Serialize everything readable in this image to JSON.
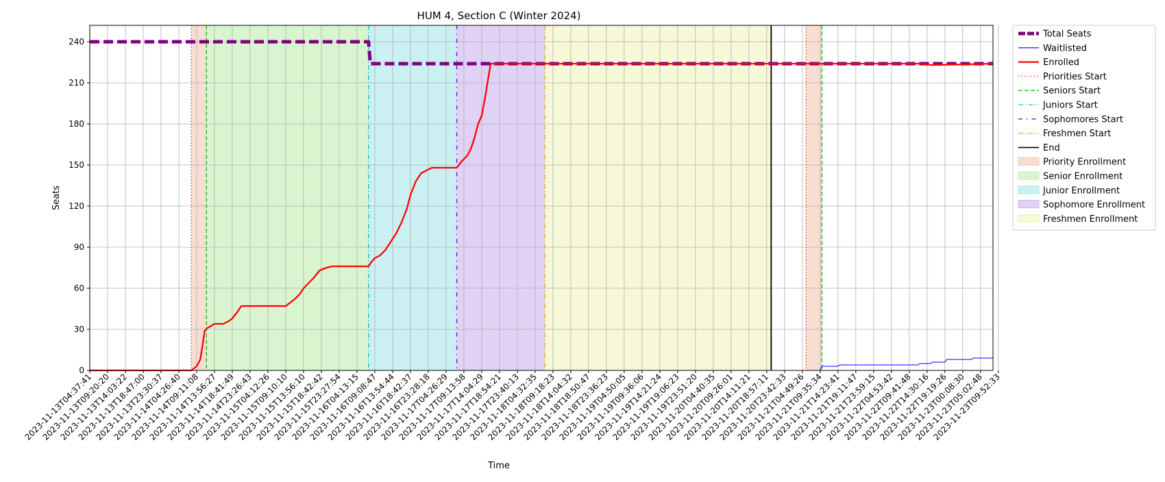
{
  "chart_data": {
    "type": "line",
    "title": "HUM 4, Section C (Winter 2024)",
    "xlabel": "Time",
    "ylabel": "Seats",
    "ylim": [
      0,
      252
    ],
    "yticks": [
      0,
      30,
      60,
      90,
      120,
      150,
      180,
      210,
      240
    ],
    "grid": true,
    "legend_position": "outside-right",
    "x_tick_labels": [
      "2023-11-13T04:37:41",
      "2023-11-13T09:20:20",
      "2023-11-13T14:03:22",
      "2023-11-13T18:47:00",
      "2023-11-13T23:30:37",
      "2023-11-14T04:26:40",
      "2023-11-14T09:11:08",
      "2023-11-14T13:56:27",
      "2023-11-14T18:41:49",
      "2023-11-14T23:26:43",
      "2023-11-15T04:12:26",
      "2023-11-15T09:10:10",
      "2023-11-15T13:56:10",
      "2023-11-15T18:42:42",
      "2023-11-15T23:27:54",
      "2023-11-16T04:13:15",
      "2023-11-16T09:08:47",
      "2023-11-16T13:54:44",
      "2023-11-16T18:42:37",
      "2023-11-16T23:28:18",
      "2023-11-17T04:26:29",
      "2023-11-17T09:13:58",
      "2023-11-17T14:04:29",
      "2023-11-17T18:54:21",
      "2023-11-17T23:40:13",
      "2023-11-18T04:32:35",
      "2023-11-18T09:18:23",
      "2023-11-18T14:04:32",
      "2023-11-18T18:50:47",
      "2023-11-18T23:36:23",
      "2023-11-19T04:50:05",
      "2023-11-19T09:36:06",
      "2023-11-19T14:21:24",
      "2023-11-19T19:06:23",
      "2023-11-19T23:51:20",
      "2023-11-20T04:40:35",
      "2023-11-20T09:26:01",
      "2023-11-20T14:11:21",
      "2023-11-20T18:57:11",
      "2023-11-20T23:42:33",
      "2023-11-21T04:49:26",
      "2023-11-21T09:35:34",
      "2023-11-21T14:23:41",
      "2023-11-21T19:11:47",
      "2023-11-21T23:59:15",
      "2023-11-22T04:53:42",
      "2023-11-22T09:41:48",
      "2023-11-22T14:30:16",
      "2023-11-22T19:19:26",
      "2023-11-23T00:08:30",
      "2023-11-23T05:02:48",
      "2023-11-23T09:52:33"
    ],
    "phases": [
      {
        "name": "Priority Enrollment",
        "start": 5.7,
        "end": 6.55,
        "color": "#f4c7b4"
      },
      {
        "name": "Senior Enrollment",
        "start": 6.55,
        "end": 15.65,
        "color": "#bfeeb0"
      },
      {
        "name": "Junior Enrollment",
        "start": 15.65,
        "end": 20.6,
        "color": "#a8e6ea"
      },
      {
        "name": "Sophomore Enrollment",
        "start": 20.6,
        "end": 25.55,
        "color": "#ccb4ee"
      },
      {
        "name": "Freshmen Enrollment",
        "start": 25.55,
        "end": 38.25,
        "color": "#f1f3bd"
      },
      {
        "name": "Priority Enrollment",
        "start": 40.2,
        "end": 41.1,
        "color": "#f4c7b4"
      }
    ],
    "markers": [
      {
        "name": "Priorities Start",
        "x": 5.7,
        "color": "#e8402a",
        "style": "dotted"
      },
      {
        "name": "Seniors Start",
        "x": 6.55,
        "color": "#22bb22",
        "style": "dashed"
      },
      {
        "name": "Juniors Start",
        "x": 15.65,
        "color": "#17c2c9",
        "style": "dashdot"
      },
      {
        "name": "Sophomores Start",
        "x": 20.6,
        "color": "#6a18d8",
        "style": "loosedash"
      },
      {
        "name": "Freshmen Start",
        "x": 25.55,
        "color": "#e0c000",
        "style": "dashdot"
      },
      {
        "name": "End",
        "x": 38.25,
        "color": "#000000",
        "style": "solid"
      },
      {
        "name": "Priorities Start",
        "x": 40.2,
        "color": "#e8402a",
        "style": "dotted"
      },
      {
        "name": "Seniors Start",
        "x": 41.1,
        "color": "#22bb22",
        "style": "dashed"
      }
    ],
    "series": [
      {
        "name": "Total Seats",
        "color": "#800080",
        "style": "thickdash",
        "x": [
          0,
          15.65,
          15.75,
          38.25,
          40.2,
          50.7
        ],
        "y": [
          240,
          240,
          224,
          224,
          224,
          224
        ]
      },
      {
        "name": "Waitlisted",
        "color": "#0000ff",
        "style": "thin",
        "x": [
          0,
          40.2,
          41.0,
          41.1,
          41.3,
          42.0,
          42.1,
          45.0,
          45.1,
          46.5,
          46.6,
          47.2,
          47.3,
          48.0,
          48.1,
          49.5,
          49.6,
          50.7
        ],
        "y": [
          0,
          0,
          0,
          3,
          3,
          3,
          4,
          4,
          4,
          4,
          5,
          5,
          6,
          6,
          8,
          8,
          9,
          9
        ]
      },
      {
        "name": "Enrolled",
        "color": "#ff0000",
        "style": "thick",
        "x": [
          0,
          5.7,
          5.8,
          6.0,
          6.2,
          6.35,
          6.45,
          6.6,
          6.75,
          7.0,
          7.5,
          7.8,
          8.0,
          8.3,
          8.5,
          9.0,
          10.0,
          11.0,
          11.2,
          11.5,
          11.8,
          12.0,
          12.3,
          12.6,
          12.9,
          13.3,
          13.6,
          14.0,
          15.0,
          15.65,
          15.8,
          16.0,
          16.3,
          16.6,
          16.9,
          17.2,
          17.5,
          17.8,
          18.0,
          18.3,
          18.6,
          18.9,
          19.2,
          20.0,
          20.6,
          20.9,
          21.2,
          21.4,
          21.6,
          21.8,
          22.0,
          22.2,
          22.35,
          22.5,
          23.0,
          38.25,
          40.2,
          46.6,
          47.3,
          50.7
        ],
        "y": [
          0,
          0,
          1,
          3,
          8,
          20,
          29,
          31,
          32,
          34,
          34,
          36,
          38,
          43,
          47,
          47,
          47,
          47,
          49,
          52,
          56,
          60,
          64,
          68,
          73,
          75,
          76,
          76,
          76,
          76,
          79,
          82,
          84,
          88,
          94,
          100,
          108,
          118,
          128,
          138,
          144,
          146,
          148,
          148,
          148,
          153,
          157,
          162,
          170,
          180,
          186,
          200,
          212,
          224,
          224,
          224,
          224,
          224,
          223,
          224
        ]
      }
    ],
    "legend": [
      {
        "label": "Total Seats",
        "kind": "line",
        "color": "#800080",
        "style": "thickdash"
      },
      {
        "label": "Waitlisted",
        "kind": "line",
        "color": "#0000ff",
        "style": "thin"
      },
      {
        "label": "Enrolled",
        "kind": "line",
        "color": "#ff0000",
        "style": "thick"
      },
      {
        "label": "Priorities Start",
        "kind": "line",
        "color": "#e8402a",
        "style": "dotted"
      },
      {
        "label": "Seniors Start",
        "kind": "line",
        "color": "#22bb22",
        "style": "dashed"
      },
      {
        "label": "Juniors Start",
        "kind": "line",
        "color": "#17c2c9",
        "style": "dashdot"
      },
      {
        "label": "Sophomores Start",
        "kind": "line",
        "color": "#6a18d8",
        "style": "loosedash"
      },
      {
        "label": "Freshmen Start",
        "kind": "line",
        "color": "#e0c000",
        "style": "dashdot"
      },
      {
        "label": "End",
        "kind": "line",
        "color": "#000000",
        "style": "solid"
      },
      {
        "label": "Priority Enrollment",
        "kind": "patch",
        "color": "#f4c7b4"
      },
      {
        "label": "Senior Enrollment",
        "kind": "patch",
        "color": "#bfeeb0"
      },
      {
        "label": "Junior Enrollment",
        "kind": "patch",
        "color": "#a8e6ea"
      },
      {
        "label": "Sophomore Enrollment",
        "kind": "patch",
        "color": "#ccb4ee"
      },
      {
        "label": "Freshmen Enrollment",
        "kind": "patch",
        "color": "#f1f3bd"
      }
    ]
  }
}
